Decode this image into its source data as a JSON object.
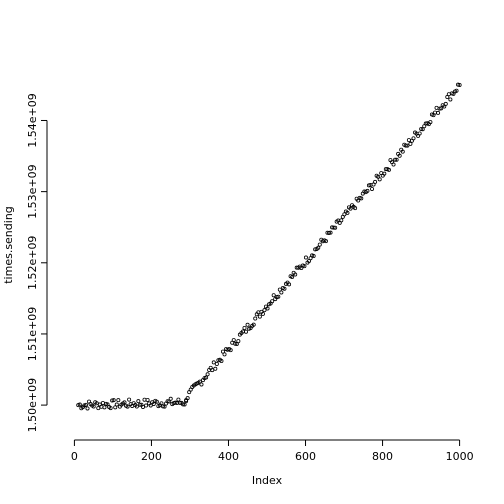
{
  "chart_data": {
    "type": "scatter",
    "title": "",
    "xlabel": "Index",
    "ylabel": "times.sending",
    "xlim": [
      0,
      1000
    ],
    "ylim": [
      1500000000.0,
      1530000000.0
    ],
    "xticks": [
      {
        "value": 0,
        "label": "0"
      },
      {
        "value": 200,
        "label": "200"
      },
      {
        "value": 400,
        "label": "400"
      },
      {
        "value": 600,
        "label": "600"
      },
      {
        "value": 800,
        "label": "800"
      },
      {
        "value": 1000,
        "label": "1000"
      }
    ],
    "yticks": [
      {
        "value": 1500000000.0,
        "label": "1.50e+09"
      },
      {
        "value": 1510000000.0,
        "label": "1.51e+09"
      },
      {
        "value": 1520000000.0,
        "label": "1.52e+09"
      },
      {
        "value": 1530000000.0,
        "label": "1.53e+09"
      },
      {
        "value": 1540000000.0,
        "label": "1.54e+09"
      }
    ],
    "grid": false,
    "legend": "none",
    "segments": [
      {
        "x_start": 10,
        "x_end": 290,
        "y_start": 1500000000.0,
        "y_end": 1500400000.0
      },
      {
        "x_start": 290,
        "x_end": 1000,
        "y_start": 1501000000.0,
        "y_end": 1545000000.0
      }
    ]
  }
}
